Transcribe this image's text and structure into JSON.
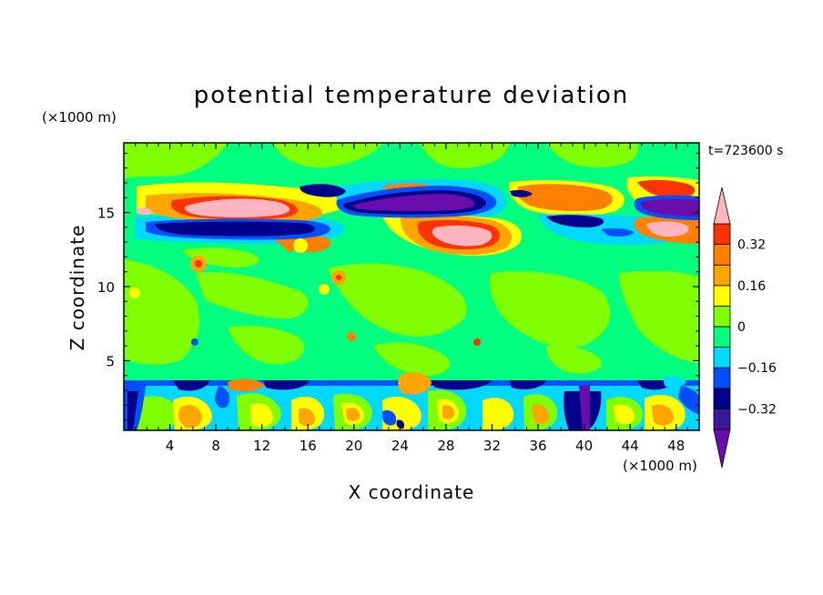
{
  "chart_data": {
    "type": "heatmap",
    "title": "potential temperature deviation",
    "xlabel": "X coordinate",
    "ylabel": "Z coordinate",
    "x_unit": "(×1000 m)",
    "y_unit": "(×1000 m)",
    "time_label": "t=723600 s",
    "xlim": [
      0,
      50
    ],
    "ylim": [
      0.3,
      19.7
    ],
    "x_ticks": [
      4,
      8,
      12,
      16,
      20,
      24,
      28,
      32,
      36,
      40,
      44,
      48
    ],
    "y_ticks": [
      5,
      10,
      15
    ],
    "colorbar": {
      "levels": [
        -0.48,
        -0.4,
        -0.32,
        -0.24,
        -0.16,
        -0.08,
        0,
        0.08,
        0.16,
        0.24,
        0.32,
        0.4,
        0.48
      ],
      "tick_labels": [
        "0.32",
        "0.16",
        "0",
        "−0.16",
        "−0.32"
      ],
      "tick_values": [
        0.32,
        0.16,
        0,
        -0.16,
        -0.32
      ],
      "colors": [
        "#6a0dad",
        "#3a1a9a",
        "#00008b",
        "#0050ff",
        "#00d8ff",
        "#00ff7f",
        "#7fff00",
        "#ffff00",
        "#ffa500",
        "#ff7f00",
        "#ff3300",
        "#ffb6c1"
      ]
    },
    "features": [
      {
        "name": "upper-positive-layer",
        "x": [
          3,
          18
        ],
        "z": [
          14.5,
          16.5
        ],
        "value": 0.5
      },
      {
        "name": "upper-negative-layer",
        "x": [
          3,
          19
        ],
        "z": [
          13.5,
          14.5
        ],
        "value": -0.4
      },
      {
        "name": "upper-negative-blob",
        "x": [
          19,
          33
        ],
        "z": [
          14.5,
          17
        ],
        "value": -0.5
      },
      {
        "name": "mid-positive-blob",
        "x": [
          26,
          33
        ],
        "z": [
          12.5,
          14.5
        ],
        "value": 0.45
      },
      {
        "name": "right-positive-blob",
        "x": [
          45,
          49
        ],
        "z": [
          13.5,
          14.5
        ],
        "value": 0.45
      },
      {
        "name": "right-negative-blob",
        "x": [
          44,
          49
        ],
        "z": [
          14.5,
          16
        ],
        "value": -0.45
      },
      {
        "name": "low-level-negative-band",
        "x": [
          0,
          50
        ],
        "z": [
          3,
          3.6
        ],
        "value": -0.3
      },
      {
        "name": "low-level-mixed-cells",
        "x": [
          0,
          50
        ],
        "z": [
          0.3,
          3.5
        ],
        "value": 0.2
      }
    ]
  }
}
